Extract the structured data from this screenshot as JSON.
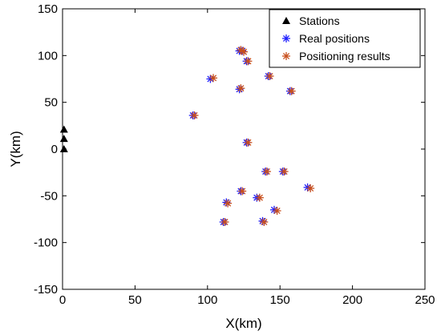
{
  "chart_data": {
    "type": "scatter",
    "xlabel": "X(km)",
    "ylabel": "Y(km)",
    "xlim": [
      0,
      250
    ],
    "ylim": [
      -150,
      150
    ],
    "xticks": [
      0,
      50,
      100,
      150,
      200,
      250
    ],
    "yticks": [
      -150,
      -100,
      -50,
      0,
      50,
      100,
      150
    ],
    "grid": false,
    "legend_position": "top-right",
    "series": [
      {
        "name": "Stations",
        "marker": "triangle",
        "color": "#000000",
        "x": [
          1,
          1,
          1
        ],
        "y": [
          0,
          11,
          21
        ]
      },
      {
        "name": "Real positions",
        "marker": "asterisk",
        "color": "#1f1fff",
        "x": [
          102,
          122,
          124,
          127,
          142,
          122,
          157,
          90,
          127,
          140,
          152,
          169,
          123,
          134,
          113,
          146,
          138,
          111
        ],
        "y": [
          75,
          105,
          105,
          94,
          78,
          64,
          62,
          36,
          7,
          -24,
          -24,
          -41,
          -45,
          -52,
          -57,
          -65,
          -77,
          -78
        ]
      },
      {
        "name": "Positioning results",
        "marker": "asterisk",
        "color": "#c8501e",
        "x": [
          104,
          123,
          125,
          128,
          143,
          123,
          158,
          91,
          128,
          141,
          153,
          171,
          124,
          136,
          114,
          148,
          139,
          112
        ],
        "y": [
          76,
          106,
          104,
          94,
          78,
          65,
          62,
          36,
          7,
          -24,
          -24,
          -42,
          -45,
          -52,
          -58,
          -66,
          -78,
          -78
        ]
      }
    ]
  }
}
